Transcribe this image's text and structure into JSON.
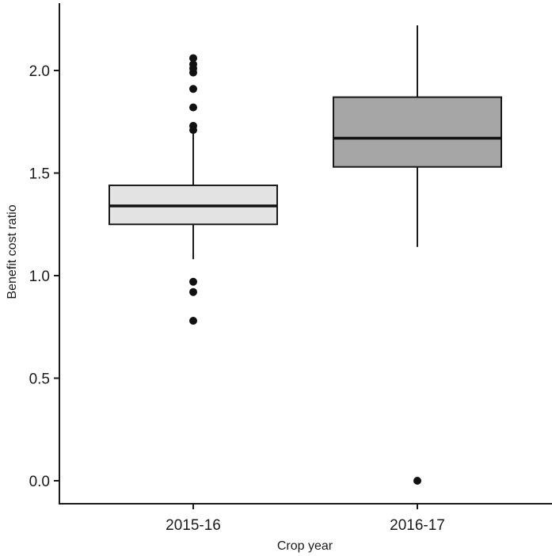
{
  "chart_data": {
    "type": "boxplot",
    "xlabel": "Crop year",
    "ylabel": "Benefit cost ratio",
    "ylim": [
      0.0,
      2.25
    ],
    "yticks": [
      0.0,
      0.5,
      1.0,
      1.5,
      2.0
    ],
    "ytick_labels": [
      "0.0",
      "0.5",
      "1.0",
      "1.5",
      "2.0"
    ],
    "grid": false,
    "categories": [
      "2015-16",
      "2016-17"
    ],
    "boxes": [
      {
        "category": "2015-16",
        "whisker_low": 1.08,
        "q1": 1.25,
        "median": 1.34,
        "q3": 1.44,
        "whisker_high": 1.7,
        "outliers": [
          0.78,
          0.92,
          0.97,
          1.71,
          1.73,
          1.82,
          1.91,
          1.99,
          2.01,
          2.03,
          2.06
        ],
        "fill": "#e3e3e3"
      },
      {
        "category": "2016-17",
        "whisker_low": 1.14,
        "q1": 1.53,
        "median": 1.67,
        "q3": 1.87,
        "whisker_high": 2.22,
        "outliers": [
          0.0
        ],
        "fill": "#a6a6a6"
      }
    ]
  }
}
